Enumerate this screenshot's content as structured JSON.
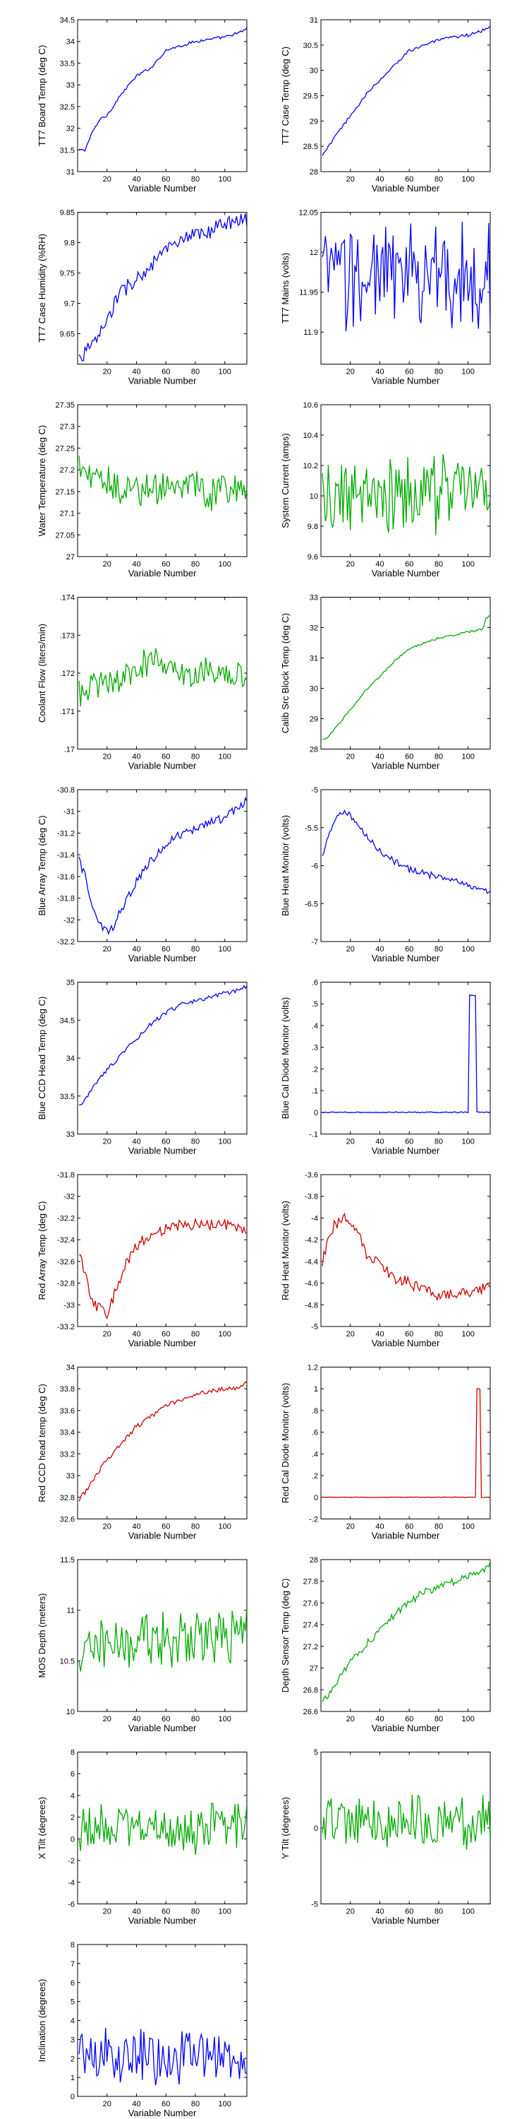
{
  "chart_data": [
    {
      "type": "line",
      "xlabel": "Variable Number",
      "ylabel": "TT7 Board Temp (deg C)",
      "color": "#0000ff",
      "xlim": [
        0,
        115
      ],
      "ylim": [
        31,
        34.5
      ],
      "xticks": [
        20,
        40,
        60,
        80,
        100
      ],
      "yticks": [
        31,
        31.5,
        32,
        32.5,
        33,
        33.5,
        34,
        34.5
      ],
      "series": [
        {
          "x": [
            1,
            5,
            10,
            15,
            20,
            30,
            40,
            50,
            60,
            70,
            80,
            90,
            100,
            110,
            115
          ],
          "y": [
            31.5,
            31.5,
            31.9,
            32.2,
            32.3,
            32.8,
            33.2,
            33.4,
            33.8,
            33.9,
            34.0,
            34.05,
            34.1,
            34.2,
            34.3
          ],
          "noise": 0.03
        }
      ]
    },
    {
      "type": "line",
      "xlabel": "Variable Number",
      "ylabel": "TT7 Case Temp (deg C)",
      "color": "#0000ff",
      "xlim": [
        0,
        115
      ],
      "ylim": [
        28,
        31
      ],
      "xticks": [
        20,
        40,
        60,
        80,
        100
      ],
      "yticks": [
        28,
        28.5,
        29,
        29.5,
        30,
        30.5,
        31
      ],
      "series": [
        {
          "x": [
            1,
            5,
            10,
            15,
            20,
            30,
            40,
            50,
            60,
            70,
            80,
            90,
            100,
            110,
            115
          ],
          "y": [
            28.3,
            28.5,
            28.7,
            28.9,
            29.1,
            29.5,
            29.8,
            30.1,
            30.4,
            30.5,
            30.6,
            30.65,
            30.7,
            30.8,
            30.85
          ],
          "noise": 0.03
        }
      ]
    },
    {
      "type": "line",
      "xlabel": "Variable Number",
      "ylabel": "TT7 Case Humidity (%RH)",
      "color": "#0000ff",
      "xlim": [
        0,
        115
      ],
      "ylim": [
        9.6,
        9.85
      ],
      "xticks": [
        20,
        40,
        60,
        80,
        100
      ],
      "yticks": [
        9.65,
        9.7,
        9.75,
        9.8,
        9.85
      ],
      "series": [
        {
          "x": [
            1,
            5,
            10,
            15,
            20,
            25,
            30,
            40,
            50,
            60,
            70,
            80,
            90,
            100,
            110,
            115
          ],
          "y": [
            9.61,
            9.62,
            9.63,
            9.65,
            9.67,
            9.7,
            9.72,
            9.74,
            9.76,
            9.79,
            9.8,
            9.81,
            9.82,
            9.83,
            9.84,
            9.84
          ],
          "noise": 0.012
        }
      ]
    },
    {
      "type": "line",
      "xlabel": "Variable Number",
      "ylabel": "TT7 Mains  (volts)",
      "color": "#0000ff",
      "xlim": [
        0,
        115
      ],
      "ylim": [
        11.86,
        12.05
      ],
      "xticks": [
        20,
        40,
        60,
        80,
        100
      ],
      "yticks": [
        11.9,
        11.95,
        12,
        12.05
      ],
      "series": [
        {
          "x": [
            1,
            115
          ],
          "y": [
            11.97,
            11.97
          ],
          "noise": 0.06
        }
      ]
    },
    {
      "type": "line",
      "xlabel": "Variable Number",
      "ylabel": "Water Temperature (deg C)",
      "color": "#00aa00",
      "xlim": [
        0,
        115
      ],
      "ylim": [
        27,
        27.35
      ],
      "xticks": [
        20,
        40,
        60,
        80,
        100
      ],
      "yticks": [
        27,
        27.05,
        27.1,
        27.15,
        27.2,
        27.25,
        27.3,
        27.35
      ],
      "series": [
        {
          "x": [
            1,
            10,
            20,
            30,
            60,
            80,
            90,
            100,
            115
          ],
          "y": [
            27.22,
            27.17,
            27.17,
            27.16,
            27.16,
            27.16,
            27.14,
            27.15,
            27.17
          ],
          "noise": 0.035
        }
      ]
    },
    {
      "type": "line",
      "xlabel": "Variable Number",
      "ylabel": "System Current (amps)",
      "color": "#00aa00",
      "xlim": [
        0,
        115
      ],
      "ylim": [
        9.6,
        10.6
      ],
      "xticks": [
        20,
        40,
        60,
        80,
        100
      ],
      "yticks": [
        9.6,
        9.8,
        10,
        10.2,
        10.4,
        10.6
      ],
      "series": [
        {
          "x": [
            1,
            115
          ],
          "y": [
            9.95,
            10.05
          ],
          "noise": 0.22
        }
      ]
    },
    {
      "type": "line",
      "xlabel": "Variable Number",
      "ylabel": "Coolant Flow (liters/min)",
      "color": "#00aa00",
      "xlim": [
        0,
        115
      ],
      "ylim": [
        0.17,
        0.174
      ],
      "xticks": [
        20,
        40,
        60,
        80,
        100
      ],
      "yticks": [
        0.17,
        0.171,
        0.172,
        0.173,
        0.174
      ],
      "series": [
        {
          "x": [
            1,
            20,
            40,
            50,
            60,
            80,
            100,
            115
          ],
          "y": [
            0.1715,
            0.1718,
            0.1719,
            0.1725,
            0.1721,
            0.172,
            0.172,
            0.1719
          ],
          "noise": 0.00035
        }
      ]
    },
    {
      "type": "line",
      "xlabel": "Variable Number",
      "ylabel": "Calib Src Block Temp (deg C)",
      "color": "#00aa00",
      "xlim": [
        0,
        115
      ],
      "ylim": [
        28,
        33
      ],
      "xticks": [
        20,
        40,
        60,
        80,
        100
      ],
      "yticks": [
        28,
        29,
        30,
        31,
        32,
        33
      ],
      "series": [
        {
          "x": [
            1,
            5,
            10,
            20,
            30,
            40,
            50,
            60,
            70,
            80,
            90,
            100,
            110,
            112,
            115
          ],
          "y": [
            28.3,
            28.4,
            28.7,
            29.3,
            29.9,
            30.4,
            30.9,
            31.3,
            31.5,
            31.65,
            31.75,
            31.85,
            31.95,
            32.3,
            32.4
          ],
          "noise": 0.03
        }
      ]
    },
    {
      "type": "line",
      "xlabel": "Variable Number",
      "ylabel": "Blue Array Temp (deg C)",
      "color": "#0000ff",
      "xlim": [
        0,
        115
      ],
      "ylim": [
        -32.2,
        -30.8
      ],
      "xticks": [
        20,
        40,
        60,
        80,
        100
      ],
      "yticks": [
        -32.2,
        -32,
        -31.8,
        -31.6,
        -31.4,
        -31.2,
        -31,
        -30.8
      ],
      "series": [
        {
          "x": [
            1,
            5,
            10,
            15,
            20,
            25,
            30,
            40,
            50,
            60,
            70,
            80,
            90,
            100,
            110,
            115
          ],
          "y": [
            -31.45,
            -31.6,
            -31.9,
            -32.05,
            -32.1,
            -32.05,
            -31.9,
            -31.65,
            -31.45,
            -31.3,
            -31.2,
            -31.15,
            -31.1,
            -31.05,
            -30.95,
            -30.9
          ],
          "noise": 0.04
        }
      ]
    },
    {
      "type": "line",
      "xlabel": "Variable Number",
      "ylabel": "Blue Heat Monitor (volts)",
      "color": "#0000ff",
      "xlim": [
        0,
        115
      ],
      "ylim": [
        -7,
        -5
      ],
      "xticks": [
        20,
        40,
        60,
        80,
        100
      ],
      "yticks": [
        -7,
        -6.5,
        -6,
        -5.5,
        -5
      ],
      "series": [
        {
          "x": [
            1,
            5,
            10,
            15,
            20,
            25,
            30,
            40,
            50,
            60,
            70,
            80,
            90,
            100,
            110,
            115
          ],
          "y": [
            -5.9,
            -5.6,
            -5.4,
            -5.3,
            -5.35,
            -5.45,
            -5.6,
            -5.8,
            -5.95,
            -6.05,
            -6.1,
            -6.15,
            -6.2,
            -6.25,
            -6.3,
            -6.33
          ],
          "noise": 0.04
        }
      ]
    },
    {
      "type": "line",
      "xlabel": "Variable Number",
      "ylabel": "Blue CCD Head Temp (deg C)",
      "color": "#0000ff",
      "xlim": [
        0,
        115
      ],
      "ylim": [
        33,
        35
      ],
      "xticks": [
        20,
        40,
        60,
        80,
        100
      ],
      "yticks": [
        33,
        33.5,
        34,
        34.5,
        35
      ],
      "series": [
        {
          "x": [
            1,
            5,
            10,
            20,
            30,
            40,
            50,
            60,
            70,
            80,
            90,
            100,
            110,
            115
          ],
          "y": [
            33.35,
            33.45,
            33.6,
            33.85,
            34.05,
            34.25,
            34.45,
            34.6,
            34.7,
            34.75,
            34.8,
            34.85,
            34.9,
            34.95
          ],
          "noise": 0.025
        }
      ]
    },
    {
      "type": "line",
      "xlabel": "Variable Number",
      "ylabel": "Blue Cal Diode Monitor (volts)",
      "color": "#0000ff",
      "xlim": [
        0,
        115
      ],
      "ylim": [
        -0.1,
        0.6
      ],
      "xticks": [
        20,
        40,
        60,
        80,
        100
      ],
      "yticks": [
        -0.1,
        0,
        0.1,
        0.2,
        0.3,
        0.4,
        0.5,
        0.6
      ],
      "series": [
        {
          "x": [
            1,
            100,
            101,
            102,
            104,
            105,
            106,
            115
          ],
          "y": [
            0,
            0,
            0.54,
            0.54,
            0.54,
            0.54,
            0,
            0
          ],
          "noise": 0.002
        }
      ]
    },
    {
      "type": "line",
      "xlabel": "Variable Number",
      "ylabel": "Red Array Temp (deg C)",
      "color": "#cc0000",
      "xlim": [
        0,
        115
      ],
      "ylim": [
        -33.2,
        -31.8
      ],
      "xticks": [
        20,
        40,
        60,
        80,
        100
      ],
      "yticks": [
        -33.2,
        -33,
        -32.8,
        -32.6,
        -32.4,
        -32.2,
        -32,
        -31.8
      ],
      "series": [
        {
          "x": [
            1,
            5,
            10,
            15,
            20,
            25,
            30,
            40,
            50,
            60,
            70,
            80,
            90,
            100,
            110,
            115
          ],
          "y": [
            -32.5,
            -32.7,
            -32.95,
            -33.05,
            -33.1,
            -32.9,
            -32.7,
            -32.45,
            -32.35,
            -32.3,
            -32.25,
            -32.25,
            -32.25,
            -32.25,
            -32.3,
            -32.35
          ],
          "noise": 0.05
        }
      ]
    },
    {
      "type": "line",
      "xlabel": "Variable Number",
      "ylabel": "Red Heat Monitor (volts)",
      "color": "#cc0000",
      "xlim": [
        0,
        115
      ],
      "ylim": [
        -5,
        -3.6
      ],
      "xticks": [
        20,
        40,
        60,
        80,
        100
      ],
      "yticks": [
        -5,
        -4.8,
        -4.6,
        -4.4,
        -4.2,
        -4,
        -3.8,
        -3.6
      ],
      "series": [
        {
          "x": [
            1,
            5,
            10,
            15,
            20,
            25,
            30,
            40,
            50,
            60,
            70,
            80,
            90,
            100,
            110,
            115
          ],
          "y": [
            -4.4,
            -4.2,
            -4.05,
            -4.0,
            -4.05,
            -4.15,
            -4.3,
            -4.45,
            -4.55,
            -4.6,
            -4.65,
            -4.7,
            -4.7,
            -4.7,
            -4.65,
            -4.65
          ],
          "noise": 0.05
        }
      ]
    },
    {
      "type": "line",
      "xlabel": "Variable Number",
      "ylabel": "Red CCD head temp (deg C)",
      "color": "#cc0000",
      "xlim": [
        0,
        115
      ],
      "ylim": [
        32.6,
        34
      ],
      "xticks": [
        20,
        40,
        60,
        80,
        100
      ],
      "yticks": [
        32.6,
        32.8,
        33,
        33.2,
        33.4,
        33.6,
        33.8,
        34
      ],
      "series": [
        {
          "x": [
            1,
            5,
            10,
            20,
            30,
            40,
            50,
            60,
            70,
            80,
            90,
            100,
            110,
            115
          ],
          "y": [
            32.78,
            32.85,
            32.95,
            33.15,
            33.3,
            33.45,
            33.55,
            33.65,
            33.7,
            33.75,
            33.78,
            33.8,
            33.82,
            33.85
          ],
          "noise": 0.02
        }
      ]
    },
    {
      "type": "line",
      "xlabel": "Variable Number",
      "ylabel": "Red Cal Diode Monitor (volts)",
      "color": "#cc0000",
      "xlim": [
        0,
        115
      ],
      "ylim": [
        -0.2,
        1.2
      ],
      "xticks": [
        20,
        40,
        60,
        80,
        100
      ],
      "yticks": [
        -0.2,
        0,
        0.2,
        0.4,
        0.6,
        0.8,
        1,
        1.2
      ],
      "series": [
        {
          "x": [
            1,
            105,
            106,
            107,
            108,
            109,
            115
          ],
          "y": [
            0,
            0,
            1.0,
            1.0,
            1.0,
            0,
            0
          ],
          "noise": 0.003
        }
      ]
    },
    {
      "type": "line",
      "xlabel": "Variable Number",
      "ylabel": "MOS Depth  (meters)",
      "color": "#00aa00",
      "xlim": [
        0,
        115
      ],
      "ylim": [
        10,
        11.5
      ],
      "xticks": [
        20,
        40,
        60,
        80,
        100
      ],
      "yticks": [
        10,
        10.5,
        11,
        11.5
      ],
      "series": [
        {
          "x": [
            1,
            20,
            40,
            60,
            80,
            100,
            115
          ],
          "y": [
            10.6,
            10.65,
            10.7,
            10.7,
            10.7,
            10.75,
            10.8
          ],
          "noise": 0.25
        }
      ]
    },
    {
      "type": "line",
      "xlabel": "Variable Number",
      "ylabel": "Depth Sensor Temp (deg C)",
      "color": "#00aa00",
      "xlim": [
        0,
        115
      ],
      "ylim": [
        26.6,
        28
      ],
      "xticks": [
        20,
        40,
        60,
        80,
        100
      ],
      "yticks": [
        26.6,
        26.8,
        27,
        27.2,
        27.4,
        27.6,
        27.8,
        28
      ],
      "series": [
        {
          "x": [
            1,
            5,
            10,
            20,
            30,
            40,
            50,
            60,
            70,
            80,
            90,
            100,
            110,
            115
          ],
          "y": [
            26.7,
            26.75,
            26.85,
            27.05,
            27.2,
            27.35,
            27.5,
            27.6,
            27.7,
            27.75,
            27.8,
            27.85,
            27.9,
            27.95
          ],
          "noise": 0.03
        }
      ]
    },
    {
      "type": "line",
      "xlabel": "Variable Number",
      "ylabel": "X Tilt  (degrees)",
      "color": "#00aa00",
      "xlim": [
        0,
        115
      ],
      "ylim": [
        -6,
        8
      ],
      "xticks": [
        20,
        40,
        60,
        80,
        100
      ],
      "yticks": [
        -6,
        -4,
        -2,
        0,
        2,
        4,
        6,
        8
      ],
      "series": [
        {
          "x": [
            1,
            115
          ],
          "y": [
            1,
            1
          ],
          "noise": 2.0
        }
      ]
    },
    {
      "type": "line",
      "xlabel": "Variable Number",
      "ylabel": "Y Tilt  (degrees)",
      "color": "#00aa00",
      "xlim": [
        0,
        115
      ],
      "ylim": [
        -5,
        5
      ],
      "xticks": [
        20,
        40,
        60,
        80,
        100
      ],
      "yticks": [
        -5,
        0,
        5
      ],
      "series": [
        {
          "x": [
            1,
            115
          ],
          "y": [
            0.5,
            0.5
          ],
          "noise": 1.6
        }
      ]
    },
    {
      "type": "line",
      "xlabel": "Variable Number",
      "ylabel": "Inclination  (degrees)",
      "color": "#0000ff",
      "xlim": [
        0,
        115
      ],
      "ylim": [
        0,
        8
      ],
      "xticks": [
        20,
        40,
        60,
        80,
        100
      ],
      "yticks": [
        0,
        1,
        2,
        3,
        4,
        5,
        6,
        7,
        8
      ],
      "series": [
        {
          "x": [
            1,
            115
          ],
          "y": [
            2.2,
            2.2
          ],
          "noise": 1.3
        }
      ]
    }
  ]
}
